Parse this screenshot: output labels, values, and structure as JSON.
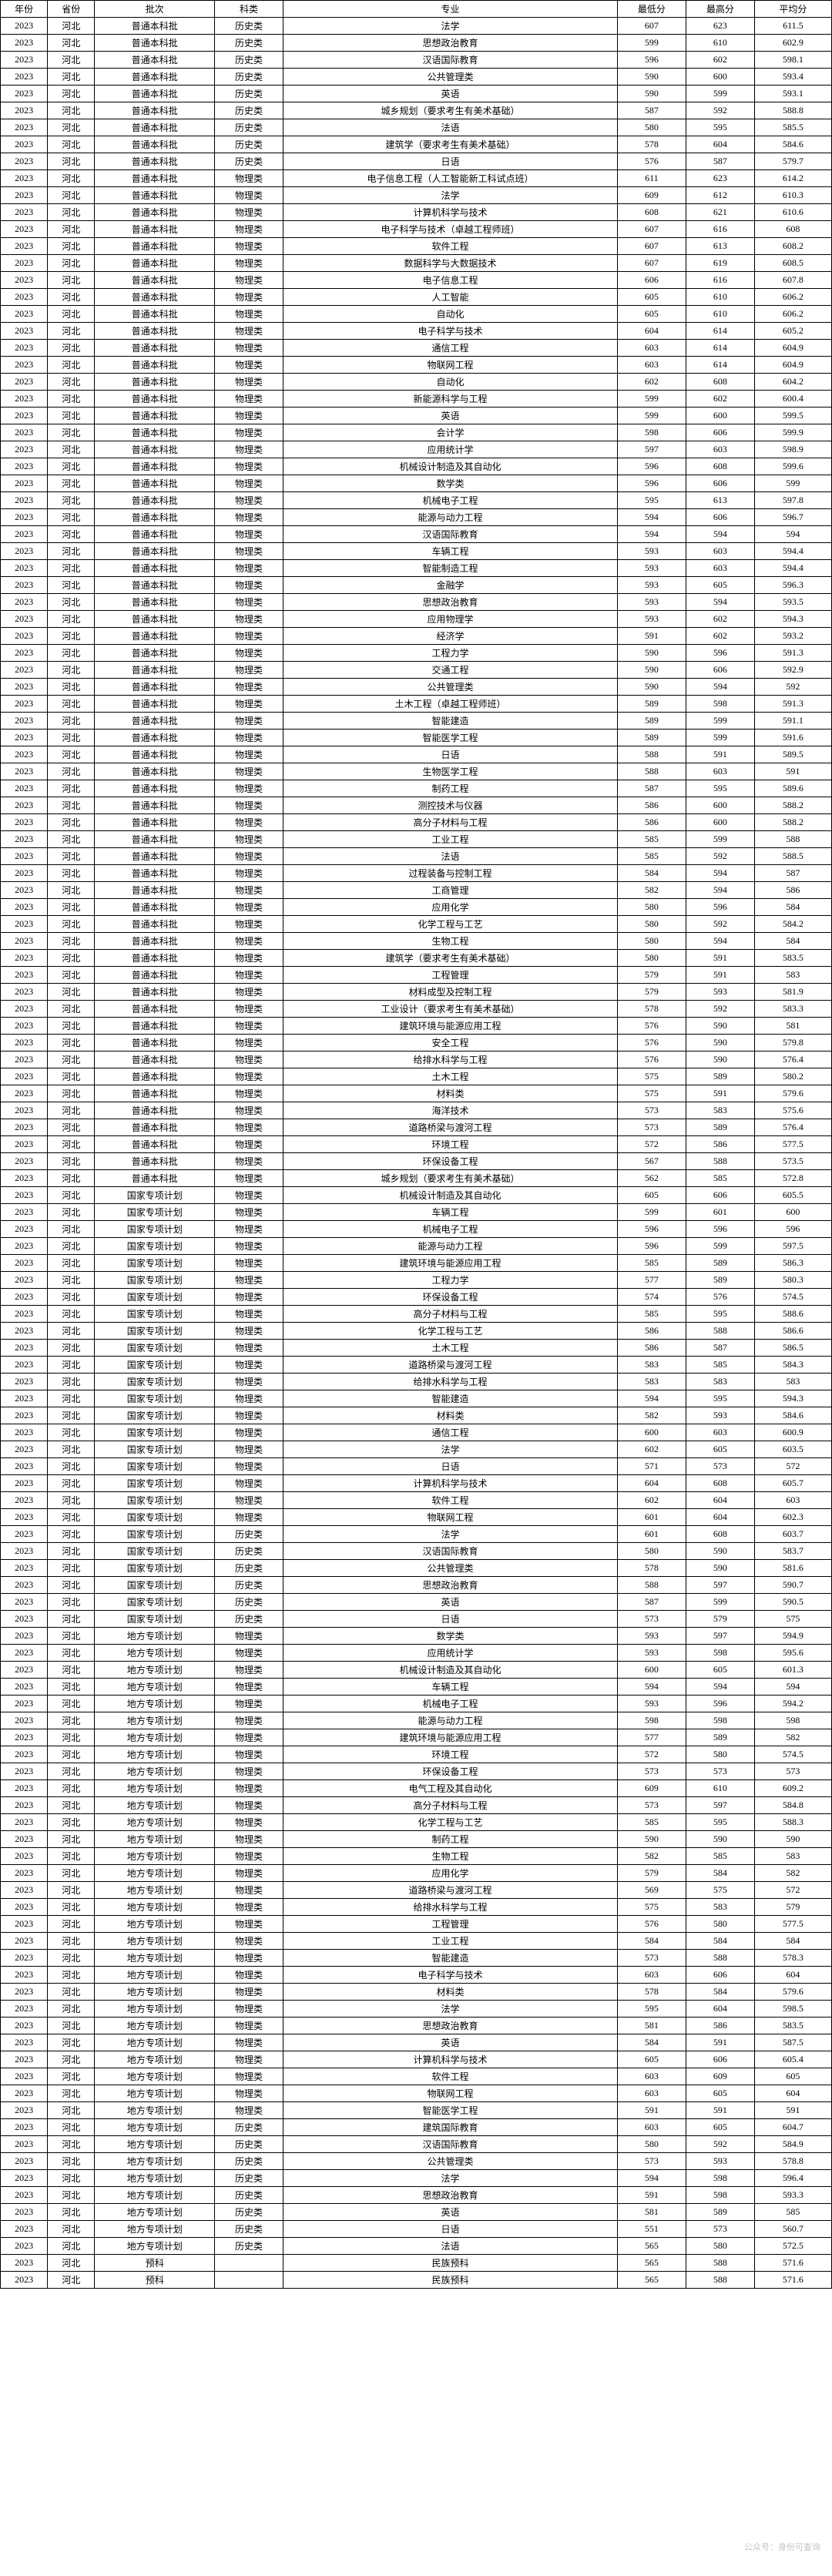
{
  "headers": [
    "年份",
    "省份",
    "批次",
    "科类",
    "专业",
    "最低分",
    "最高分",
    "平均分"
  ],
  "watermark": "公众号：身份可查询",
  "rows": [
    [
      "2023",
      "河北",
      "普通本科批",
      "历史类",
      "法学",
      "607",
      "623",
      "611.5"
    ],
    [
      "2023",
      "河北",
      "普通本科批",
      "历史类",
      "思想政治教育",
      "599",
      "610",
      "602.9"
    ],
    [
      "2023",
      "河北",
      "普通本科批",
      "历史类",
      "汉语国际教育",
      "596",
      "602",
      "598.1"
    ],
    [
      "2023",
      "河北",
      "普通本科批",
      "历史类",
      "公共管理类",
      "590",
      "600",
      "593.4"
    ],
    [
      "2023",
      "河北",
      "普通本科批",
      "历史类",
      "英语",
      "590",
      "599",
      "593.1"
    ],
    [
      "2023",
      "河北",
      "普通本科批",
      "历史类",
      "城乡规划（要求考生有美术基础）",
      "587",
      "592",
      "588.8"
    ],
    [
      "2023",
      "河北",
      "普通本科批",
      "历史类",
      "法语",
      "580",
      "595",
      "585.5"
    ],
    [
      "2023",
      "河北",
      "普通本科批",
      "历史类",
      "建筑学（要求考生有美术基础）",
      "578",
      "604",
      "584.6"
    ],
    [
      "2023",
      "河北",
      "普通本科批",
      "历史类",
      "日语",
      "576",
      "587",
      "579.7"
    ],
    [
      "2023",
      "河北",
      "普通本科批",
      "物理类",
      "电子信息工程（人工智能新工科试点班）",
      "611",
      "623",
      "614.2"
    ],
    [
      "2023",
      "河北",
      "普通本科批",
      "物理类",
      "法学",
      "609",
      "612",
      "610.3"
    ],
    [
      "2023",
      "河北",
      "普通本科批",
      "物理类",
      "计算机科学与技术",
      "608",
      "621",
      "610.6"
    ],
    [
      "2023",
      "河北",
      "普通本科批",
      "物理类",
      "电子科学与技术（卓越工程师班）",
      "607",
      "616",
      "608"
    ],
    [
      "2023",
      "河北",
      "普通本科批",
      "物理类",
      "软件工程",
      "607",
      "613",
      "608.2"
    ],
    [
      "2023",
      "河北",
      "普通本科批",
      "物理类",
      "数据科学与大数据技术",
      "607",
      "619",
      "608.5"
    ],
    [
      "2023",
      "河北",
      "普通本科批",
      "物理类",
      "电子信息工程",
      "606",
      "616",
      "607.8"
    ],
    [
      "2023",
      "河北",
      "普通本科批",
      "物理类",
      "人工智能",
      "605",
      "610",
      "606.2"
    ],
    [
      "2023",
      "河北",
      "普通本科批",
      "物理类",
      "自动化",
      "605",
      "610",
      "606.2"
    ],
    [
      "2023",
      "河北",
      "普通本科批",
      "物理类",
      "电子科学与技术",
      "604",
      "614",
      "605.2"
    ],
    [
      "2023",
      "河北",
      "普通本科批",
      "物理类",
      "通信工程",
      "603",
      "614",
      "604.9"
    ],
    [
      "2023",
      "河北",
      "普通本科批",
      "物理类",
      "物联网工程",
      "603",
      "614",
      "604.9"
    ],
    [
      "2023",
      "河北",
      "普通本科批",
      "物理类",
      "自动化",
      "602",
      "608",
      "604.2"
    ],
    [
      "2023",
      "河北",
      "普通本科批",
      "物理类",
      "新能源科学与工程",
      "599",
      "602",
      "600.4"
    ],
    [
      "2023",
      "河北",
      "普通本科批",
      "物理类",
      "英语",
      "599",
      "600",
      "599.5"
    ],
    [
      "2023",
      "河北",
      "普通本科批",
      "物理类",
      "会计学",
      "598",
      "606",
      "599.9"
    ],
    [
      "2023",
      "河北",
      "普通本科批",
      "物理类",
      "应用统计学",
      "597",
      "603",
      "598.9"
    ],
    [
      "2023",
      "河北",
      "普通本科批",
      "物理类",
      "机械设计制造及其自动化",
      "596",
      "608",
      "599.6"
    ],
    [
      "2023",
      "河北",
      "普通本科批",
      "物理类",
      "数学类",
      "596",
      "606",
      "599"
    ],
    [
      "2023",
      "河北",
      "普通本科批",
      "物理类",
      "机械电子工程",
      "595",
      "613",
      "597.8"
    ],
    [
      "2023",
      "河北",
      "普通本科批",
      "物理类",
      "能源与动力工程",
      "594",
      "606",
      "596.7"
    ],
    [
      "2023",
      "河北",
      "普通本科批",
      "物理类",
      "汉语国际教育",
      "594",
      "594",
      "594"
    ],
    [
      "2023",
      "河北",
      "普通本科批",
      "物理类",
      "车辆工程",
      "593",
      "603",
      "594.4"
    ],
    [
      "2023",
      "河北",
      "普通本科批",
      "物理类",
      "智能制造工程",
      "593",
      "603",
      "594.4"
    ],
    [
      "2023",
      "河北",
      "普通本科批",
      "物理类",
      "金融学",
      "593",
      "605",
      "596.3"
    ],
    [
      "2023",
      "河北",
      "普通本科批",
      "物理类",
      "思想政治教育",
      "593",
      "594",
      "593.5"
    ],
    [
      "2023",
      "河北",
      "普通本科批",
      "物理类",
      "应用物理学",
      "593",
      "602",
      "594.3"
    ],
    [
      "2023",
      "河北",
      "普通本科批",
      "物理类",
      "经济学",
      "591",
      "602",
      "593.2"
    ],
    [
      "2023",
      "河北",
      "普通本科批",
      "物理类",
      "工程力学",
      "590",
      "596",
      "591.3"
    ],
    [
      "2023",
      "河北",
      "普通本科批",
      "物理类",
      "交通工程",
      "590",
      "606",
      "592.9"
    ],
    [
      "2023",
      "河北",
      "普通本科批",
      "物理类",
      "公共管理类",
      "590",
      "594",
      "592"
    ],
    [
      "2023",
      "河北",
      "普通本科批",
      "物理类",
      "土木工程（卓越工程师班）",
      "589",
      "598",
      "591.3"
    ],
    [
      "2023",
      "河北",
      "普通本科批",
      "物理类",
      "智能建造",
      "589",
      "599",
      "591.1"
    ],
    [
      "2023",
      "河北",
      "普通本科批",
      "物理类",
      "智能医学工程",
      "589",
      "599",
      "591.6"
    ],
    [
      "2023",
      "河北",
      "普通本科批",
      "物理类",
      "日语",
      "588",
      "591",
      "589.5"
    ],
    [
      "2023",
      "河北",
      "普通本科批",
      "物理类",
      "生物医学工程",
      "588",
      "603",
      "591"
    ],
    [
      "2023",
      "河北",
      "普通本科批",
      "物理类",
      "制药工程",
      "587",
      "595",
      "589.6"
    ],
    [
      "2023",
      "河北",
      "普通本科批",
      "物理类",
      "测控技术与仪器",
      "586",
      "600",
      "588.2"
    ],
    [
      "2023",
      "河北",
      "普通本科批",
      "物理类",
      "高分子材料与工程",
      "586",
      "600",
      "588.2"
    ],
    [
      "2023",
      "河北",
      "普通本科批",
      "物理类",
      "工业工程",
      "585",
      "599",
      "588"
    ],
    [
      "2023",
      "河北",
      "普通本科批",
      "物理类",
      "法语",
      "585",
      "592",
      "588.5"
    ],
    [
      "2023",
      "河北",
      "普通本科批",
      "物理类",
      "过程装备与控制工程",
      "584",
      "594",
      "587"
    ],
    [
      "2023",
      "河北",
      "普通本科批",
      "物理类",
      "工商管理",
      "582",
      "594",
      "586"
    ],
    [
      "2023",
      "河北",
      "普通本科批",
      "物理类",
      "应用化学",
      "580",
      "596",
      "584"
    ],
    [
      "2023",
      "河北",
      "普通本科批",
      "物理类",
      "化学工程与工艺",
      "580",
      "592",
      "584.2"
    ],
    [
      "2023",
      "河北",
      "普通本科批",
      "物理类",
      "生物工程",
      "580",
      "594",
      "584"
    ],
    [
      "2023",
      "河北",
      "普通本科批",
      "物理类",
      "建筑学（要求考生有美术基础）",
      "580",
      "591",
      "583.5"
    ],
    [
      "2023",
      "河北",
      "普通本科批",
      "物理类",
      "工程管理",
      "579",
      "591",
      "583"
    ],
    [
      "2023",
      "河北",
      "普通本科批",
      "物理类",
      "材料成型及控制工程",
      "579",
      "593",
      "581.9"
    ],
    [
      "2023",
      "河北",
      "普通本科批",
      "物理类",
      "工业设计（要求考生有美术基础）",
      "578",
      "592",
      "583.3"
    ],
    [
      "2023",
      "河北",
      "普通本科批",
      "物理类",
      "建筑环境与能源应用工程",
      "576",
      "590",
      "581"
    ],
    [
      "2023",
      "河北",
      "普通本科批",
      "物理类",
      "安全工程",
      "576",
      "590",
      "579.8"
    ],
    [
      "2023",
      "河北",
      "普通本科批",
      "物理类",
      "给排水科学与工程",
      "576",
      "590",
      "576.4"
    ],
    [
      "2023",
      "河北",
      "普通本科批",
      "物理类",
      "土木工程",
      "575",
      "589",
      "580.2"
    ],
    [
      "2023",
      "河北",
      "普通本科批",
      "物理类",
      "材料类",
      "575",
      "591",
      "579.6"
    ],
    [
      "2023",
      "河北",
      "普通本科批",
      "物理类",
      "海洋技术",
      "573",
      "583",
      "575.6"
    ],
    [
      "2023",
      "河北",
      "普通本科批",
      "物理类",
      "道路桥梁与渡河工程",
      "573",
      "589",
      "576.4"
    ],
    [
      "2023",
      "河北",
      "普通本科批",
      "物理类",
      "环境工程",
      "572",
      "586",
      "577.5"
    ],
    [
      "2023",
      "河北",
      "普通本科批",
      "物理类",
      "环保设备工程",
      "567",
      "588",
      "573.5"
    ],
    [
      "2023",
      "河北",
      "普通本科批",
      "物理类",
      "城乡规划（要求考生有美术基础）",
      "562",
      "585",
      "572.8"
    ],
    [
      "2023",
      "河北",
      "国家专项计划",
      "物理类",
      "机械设计制造及其自动化",
      "605",
      "606",
      "605.5"
    ],
    [
      "2023",
      "河北",
      "国家专项计划",
      "物理类",
      "车辆工程",
      "599",
      "601",
      "600"
    ],
    [
      "2023",
      "河北",
      "国家专项计划",
      "物理类",
      "机械电子工程",
      "596",
      "596",
      "596"
    ],
    [
      "2023",
      "河北",
      "国家专项计划",
      "物理类",
      "能源与动力工程",
      "596",
      "599",
      "597.5"
    ],
    [
      "2023",
      "河北",
      "国家专项计划",
      "物理类",
      "建筑环境与能源应用工程",
      "585",
      "589",
      "586.3"
    ],
    [
      "2023",
      "河北",
      "国家专项计划",
      "物理类",
      "工程力学",
      "577",
      "589",
      "580.3"
    ],
    [
      "2023",
      "河北",
      "国家专项计划",
      "物理类",
      "环保设备工程",
      "574",
      "576",
      "574.5"
    ],
    [
      "2023",
      "河北",
      "国家专项计划",
      "物理类",
      "高分子材料与工程",
      "585",
      "595",
      "588.6"
    ],
    [
      "2023",
      "河北",
      "国家专项计划",
      "物理类",
      "化学工程与工艺",
      "586",
      "588",
      "586.6"
    ],
    [
      "2023",
      "河北",
      "国家专项计划",
      "物理类",
      "土木工程",
      "586",
      "587",
      "586.5"
    ],
    [
      "2023",
      "河北",
      "国家专项计划",
      "物理类",
      "道路桥梁与渡河工程",
      "583",
      "585",
      "584.3"
    ],
    [
      "2023",
      "河北",
      "国家专项计划",
      "物理类",
      "给排水科学与工程",
      "583",
      "583",
      "583"
    ],
    [
      "2023",
      "河北",
      "国家专项计划",
      "物理类",
      "智能建造",
      "594",
      "595",
      "594.3"
    ],
    [
      "2023",
      "河北",
      "国家专项计划",
      "物理类",
      "材料类",
      "582",
      "593",
      "584.6"
    ],
    [
      "2023",
      "河北",
      "国家专项计划",
      "物理类",
      "通信工程",
      "600",
      "603",
      "600.9"
    ],
    [
      "2023",
      "河北",
      "国家专项计划",
      "物理类",
      "法学",
      "602",
      "605",
      "603.5"
    ],
    [
      "2023",
      "河北",
      "国家专项计划",
      "物理类",
      "日语",
      "571",
      "573",
      "572"
    ],
    [
      "2023",
      "河北",
      "国家专项计划",
      "物理类",
      "计算机科学与技术",
      "604",
      "608",
      "605.7"
    ],
    [
      "2023",
      "河北",
      "国家专项计划",
      "物理类",
      "软件工程",
      "602",
      "604",
      "603"
    ],
    [
      "2023",
      "河北",
      "国家专项计划",
      "物理类",
      "物联网工程",
      "601",
      "604",
      "602.3"
    ],
    [
      "2023",
      "河北",
      "国家专项计划",
      "历史类",
      "法学",
      "601",
      "608",
      "603.7"
    ],
    [
      "2023",
      "河北",
      "国家专项计划",
      "历史类",
      "汉语国际教育",
      "580",
      "590",
      "583.7"
    ],
    [
      "2023",
      "河北",
      "国家专项计划",
      "历史类",
      "公共管理类",
      "578",
      "590",
      "581.6"
    ],
    [
      "2023",
      "河北",
      "国家专项计划",
      "历史类",
      "思想政治教育",
      "588",
      "597",
      "590.7"
    ],
    [
      "2023",
      "河北",
      "国家专项计划",
      "历史类",
      "英语",
      "587",
      "599",
      "590.5"
    ],
    [
      "2023",
      "河北",
      "国家专项计划",
      "历史类",
      "日语",
      "573",
      "579",
      "575"
    ],
    [
      "2023",
      "河北",
      "地方专项计划",
      "物理类",
      "数学类",
      "593",
      "597",
      "594.9"
    ],
    [
      "2023",
      "河北",
      "地方专项计划",
      "物理类",
      "应用统计学",
      "593",
      "598",
      "595.6"
    ],
    [
      "2023",
      "河北",
      "地方专项计划",
      "物理类",
      "机械设计制造及其自动化",
      "600",
      "605",
      "601.3"
    ],
    [
      "2023",
      "河北",
      "地方专项计划",
      "物理类",
      "车辆工程",
      "594",
      "594",
      "594"
    ],
    [
      "2023",
      "河北",
      "地方专项计划",
      "物理类",
      "机械电子工程",
      "593",
      "596",
      "594.2"
    ],
    [
      "2023",
      "河北",
      "地方专项计划",
      "物理类",
      "能源与动力工程",
      "598",
      "598",
      "598"
    ],
    [
      "2023",
      "河北",
      "地方专项计划",
      "物理类",
      "建筑环境与能源应用工程",
      "577",
      "589",
      "582"
    ],
    [
      "2023",
      "河北",
      "地方专项计划",
      "物理类",
      "环境工程",
      "572",
      "580",
      "574.5"
    ],
    [
      "2023",
      "河北",
      "地方专项计划",
      "物理类",
      "环保设备工程",
      "573",
      "573",
      "573"
    ],
    [
      "2023",
      "河北",
      "地方专项计划",
      "物理类",
      "电气工程及其自动化",
      "609",
      "610",
      "609.2"
    ],
    [
      "2023",
      "河北",
      "地方专项计划",
      "物理类",
      "高分子材料与工程",
      "573",
      "597",
      "584.8"
    ],
    [
      "2023",
      "河北",
      "地方专项计划",
      "物理类",
      "化学工程与工艺",
      "585",
      "595",
      "588.3"
    ],
    [
      "2023",
      "河北",
      "地方专项计划",
      "物理类",
      "制药工程",
      "590",
      "590",
      "590"
    ],
    [
      "2023",
      "河北",
      "地方专项计划",
      "物理类",
      "生物工程",
      "582",
      "585",
      "583"
    ],
    [
      "2023",
      "河北",
      "地方专项计划",
      "物理类",
      "应用化学",
      "579",
      "584",
      "582"
    ],
    [
      "2023",
      "河北",
      "地方专项计划",
      "物理类",
      "道路桥梁与渡河工程",
      "569",
      "575",
      "572"
    ],
    [
      "2023",
      "河北",
      "地方专项计划",
      "物理类",
      "给排水科学与工程",
      "575",
      "583",
      "579"
    ],
    [
      "2023",
      "河北",
      "地方专项计划",
      "物理类",
      "工程管理",
      "576",
      "580",
      "577.5"
    ],
    [
      "2023",
      "河北",
      "地方专项计划",
      "物理类",
      "工业工程",
      "584",
      "584",
      "584"
    ],
    [
      "2023",
      "河北",
      "地方专项计划",
      "物理类",
      "智能建造",
      "573",
      "588",
      "578.3"
    ],
    [
      "2023",
      "河北",
      "地方专项计划",
      "物理类",
      "电子科学与技术",
      "603",
      "606",
      "604"
    ],
    [
      "2023",
      "河北",
      "地方专项计划",
      "物理类",
      "材料类",
      "578",
      "584",
      "579.6"
    ],
    [
      "2023",
      "河北",
      "地方专项计划",
      "物理类",
      "法学",
      "595",
      "604",
      "598.5"
    ],
    [
      "2023",
      "河北",
      "地方专项计划",
      "物理类",
      "思想政治教育",
      "581",
      "586",
      "583.5"
    ],
    [
      "2023",
      "河北",
      "地方专项计划",
      "物理类",
      "英语",
      "584",
      "591",
      "587.5"
    ],
    [
      "2023",
      "河北",
      "地方专项计划",
      "物理类",
      "计算机科学与技术",
      "605",
      "606",
      "605.4"
    ],
    [
      "2023",
      "河北",
      "地方专项计划",
      "物理类",
      "软件工程",
      "603",
      "609",
      "605"
    ],
    [
      "2023",
      "河北",
      "地方专项计划",
      "物理类",
      "物联网工程",
      "603",
      "605",
      "604"
    ],
    [
      "2023",
      "河北",
      "地方专项计划",
      "物理类",
      "智能医学工程",
      "591",
      "591",
      "591"
    ],
    [
      "2023",
      "河北",
      "地方专项计划",
      "历史类",
      "建筑国际教育",
      "603",
      "605",
      "604.7"
    ],
    [
      "2023",
      "河北",
      "地方专项计划",
      "历史类",
      "汉语国际教育",
      "580",
      "592",
      "584.9"
    ],
    [
      "2023",
      "河北",
      "地方专项计划",
      "历史类",
      "公共管理类",
      "573",
      "593",
      "578.8"
    ],
    [
      "2023",
      "河北",
      "地方专项计划",
      "历史类",
      "法学",
      "594",
      "598",
      "596.4"
    ],
    [
      "2023",
      "河北",
      "地方专项计划",
      "历史类",
      "思想政治教育",
      "591",
      "598",
      "593.3"
    ],
    [
      "2023",
      "河北",
      "地方专项计划",
      "历史类",
      "英语",
      "581",
      "589",
      "585"
    ],
    [
      "2023",
      "河北",
      "地方专项计划",
      "历史类",
      "日语",
      "551",
      "573",
      "560.7"
    ],
    [
      "2023",
      "河北",
      "地方专项计划",
      "历史类",
      "法语",
      "565",
      "580",
      "572.5"
    ],
    [
      "2023",
      "河北",
      "预科",
      "",
      "民族预科",
      "565",
      "588",
      "571.6"
    ],
    [
      "2023",
      "河北",
      "预科",
      "",
      "民族预科",
      "565",
      "588",
      "571.6"
    ]
  ]
}
